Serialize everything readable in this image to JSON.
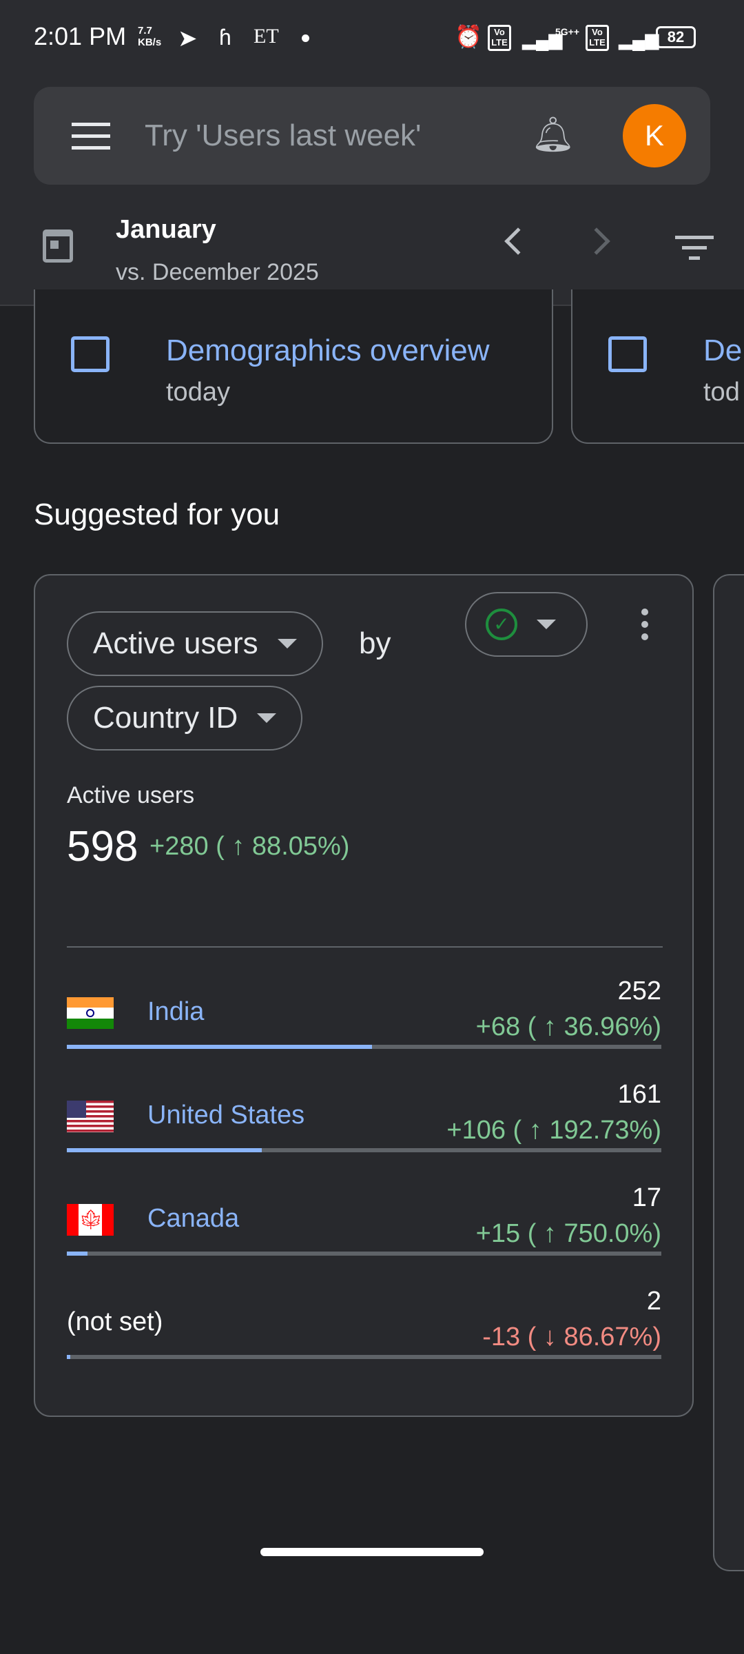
{
  "status_bar": {
    "time": "2:01 PM",
    "speed": "7.7",
    "speed_unit": "KB/s",
    "et": "ET",
    "network": "5G++",
    "volte": "Vo LTE",
    "battery": "82"
  },
  "search": {
    "placeholder": "Try 'Users last week'",
    "avatar_letter": "K",
    "avatar_color": "#f57c00"
  },
  "date": {
    "period": "January",
    "comparison": "vs. December 2025"
  },
  "recent": [
    {
      "title": "Demographics overview",
      "subtitle": "today"
    },
    {
      "title": "De",
      "subtitle": "tod"
    }
  ],
  "section_title": "Suggested for you",
  "card": {
    "metric_chip": "Active users",
    "by": "by",
    "dimension_chip": "Country ID",
    "metric_label": "Active users",
    "total": "598",
    "total_change": "+280 ( ↑ 88.05%)",
    "rows": [
      {
        "name": "India",
        "value": "252",
        "change": "+68 ( ↑ 36.96%)",
        "trend": "up",
        "share": 0.513,
        "flag": "india"
      },
      {
        "name": "United States",
        "value": "161",
        "change": "+106 ( ↑ 192.73%)",
        "trend": "up",
        "share": 0.328,
        "flag": "usa"
      },
      {
        "name": "Canada",
        "value": "17",
        "change": "+15 ( ↑ 750.0%)",
        "trend": "up",
        "share": 0.035,
        "flag": "canada"
      },
      {
        "name": "(not set)",
        "value": "2",
        "change": "-13 ( ↓ 86.67%)",
        "trend": "down",
        "share": 0.006,
        "flag": null
      }
    ]
  },
  "colors": {
    "accent": "#8ab4f8",
    "positive": "#81c995",
    "negative": "#f28b82",
    "ok_check": "#1e8e3e"
  }
}
